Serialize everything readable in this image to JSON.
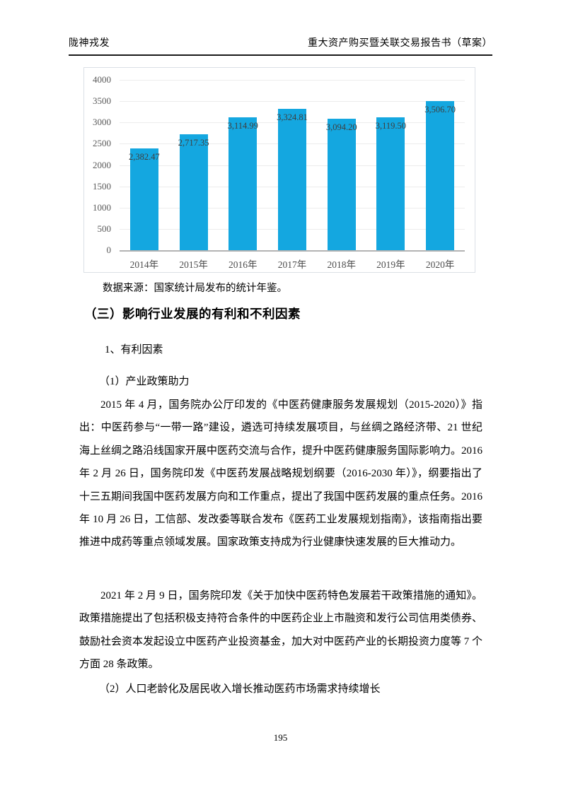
{
  "header": {
    "left": "陇神戎发",
    "right": "重大资产购买暨关联交易报告书（草案）"
  },
  "chart_data": {
    "type": "bar",
    "categories": [
      "2014年",
      "2015年",
      "2016年",
      "2017年",
      "2018年",
      "2019年",
      "2020年"
    ],
    "values": [
      2382.47,
      2717.35,
      3114.99,
      3324.81,
      3094.2,
      3119.5,
      3506.7
    ],
    "data_labels": [
      "2,382.47",
      "2,717.35",
      "3,114.99",
      "3,324.81",
      "3,094.20",
      "3,119.50",
      "3,506.70"
    ],
    "title": "",
    "xlabel": "",
    "ylabel": "",
    "ylim": [
      0,
      4000
    ],
    "ytick_interval": 500,
    "grid": true,
    "legend": "none",
    "bar_color": "#14a7e0",
    "label_color": "#3f3f3f",
    "axis_text_color": "#595959"
  },
  "source_note": "数据来源：国家统计局发布的统计年鉴。",
  "sections": {
    "heading": "（三）影响行业发展的有利和不利因素",
    "sub1": "1、有利因素",
    "sub2": "（1）产业政策助力",
    "p1": "2015 年 4 月，国务院办公厅印发的《中医药健康服务发展规划（2015-2020）》指出：中医药参与“一带一路”建设，遴选可持续发展项目，与丝绸之路经济带、21 世纪海上丝绸之路沿线国家开展中医药交流与合作，提升中医药健康服务国际影响力。2016 年 2 月 26 日，国务院印发《中医药发展战略规划纲要（2016-2030 年）》，纲要指出了十三五期间我国中医药发展方向和工作重点，提出了我国中医药发展的重点任务。2016 年 10 月 26 日，工信部、发改委等联合发布《医药工业发展规划指南》，该指南指出要推进中成药等重点领域发展。国家政策支持成为行业健康快速发展的巨大推动力。",
    "p2": "2021 年 2 月 9 日，国务院印发《关于加快中医药特色发展若干政策措施的通知》。政策措施提出了包括积极支持符合条件的中医药企业上市融资和发行公司信用类债券、鼓励社会资本发起设立中医药产业投资基金，加大对中医药产业的长期投资力度等 7 个方面 28 条政策。",
    "sub3": "（2）人口老龄化及居民收入增长推动医药市场需求持续增长"
  },
  "footer": {
    "page_number": "195"
  }
}
